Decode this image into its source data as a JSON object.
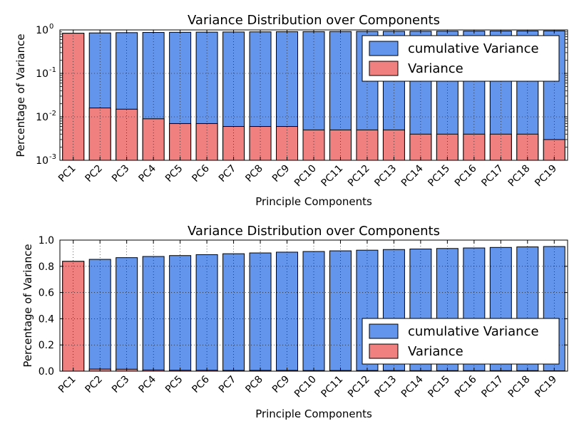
{
  "chart_data": [
    {
      "type": "bar",
      "title": "Variance Distribution over Components",
      "xlabel": "Principle Components",
      "ylabel": "Percentage of Variance",
      "yscale": "log",
      "ylim": [
        0.001,
        1.0
      ],
      "ytick_labels": [
        {
          "base": "10",
          "exp": "-3"
        },
        {
          "base": "10",
          "exp": "-2"
        },
        {
          "base": "10",
          "exp": "-1"
        },
        {
          "base": "10",
          "exp": "0"
        }
      ],
      "ytick_values": [
        0.001,
        0.01,
        0.1,
        1.0
      ],
      "grid": true,
      "legend": "top-right",
      "categories": [
        "PC1",
        "PC2",
        "PC3",
        "PC4",
        "PC5",
        "PC6",
        "PC7",
        "PC8",
        "PC9",
        "PC10",
        "PC11",
        "PC12",
        "PC13",
        "PC14",
        "PC15",
        "PC16",
        "PC17",
        "PC18",
        "PC19"
      ],
      "series": [
        {
          "name": "cumulative Variance",
          "color": "#6495ed",
          "values": [
            0.838,
            0.853,
            0.866,
            0.875,
            0.882,
            0.889,
            0.896,
            0.902,
            0.908,
            0.913,
            0.918,
            0.923,
            0.928,
            0.932,
            0.936,
            0.94,
            0.944,
            0.948,
            0.951
          ]
        },
        {
          "name": "Variance",
          "color": "#f08080",
          "values": [
            0.838,
            0.016,
            0.015,
            0.009,
            0.007,
            0.007,
            0.006,
            0.006,
            0.006,
            0.005,
            0.005,
            0.005,
            0.005,
            0.004,
            0.004,
            0.004,
            0.004,
            0.004,
            0.003
          ]
        }
      ]
    },
    {
      "type": "bar",
      "title": "Variance Distribution over Components",
      "xlabel": "Principle Components",
      "ylabel": "Percentage of Variance",
      "yscale": "linear",
      "ylim": [
        0.0,
        1.0
      ],
      "ytick_labels": [
        "0.0",
        "0.2",
        "0.4",
        "0.6",
        "0.8",
        "1.0"
      ],
      "ytick_values": [
        0.0,
        0.2,
        0.4,
        0.6,
        0.8,
        1.0
      ],
      "grid": true,
      "legend": "bottom-right",
      "categories": [
        "PC1",
        "PC2",
        "PC3",
        "PC4",
        "PC5",
        "PC6",
        "PC7",
        "PC8",
        "PC9",
        "PC10",
        "PC11",
        "PC12",
        "PC13",
        "PC14",
        "PC15",
        "PC16",
        "PC17",
        "PC18",
        "PC19"
      ],
      "series": [
        {
          "name": "cumulative Variance",
          "color": "#6495ed",
          "values": [
            0.838,
            0.853,
            0.866,
            0.875,
            0.882,
            0.889,
            0.896,
            0.902,
            0.908,
            0.913,
            0.918,
            0.923,
            0.928,
            0.932,
            0.936,
            0.94,
            0.944,
            0.948,
            0.951
          ]
        },
        {
          "name": "Variance",
          "color": "#f08080",
          "values": [
            0.838,
            0.016,
            0.015,
            0.009,
            0.007,
            0.007,
            0.006,
            0.006,
            0.006,
            0.005,
            0.005,
            0.005,
            0.005,
            0.004,
            0.004,
            0.004,
            0.004,
            0.004,
            0.003
          ]
        }
      ]
    }
  ]
}
